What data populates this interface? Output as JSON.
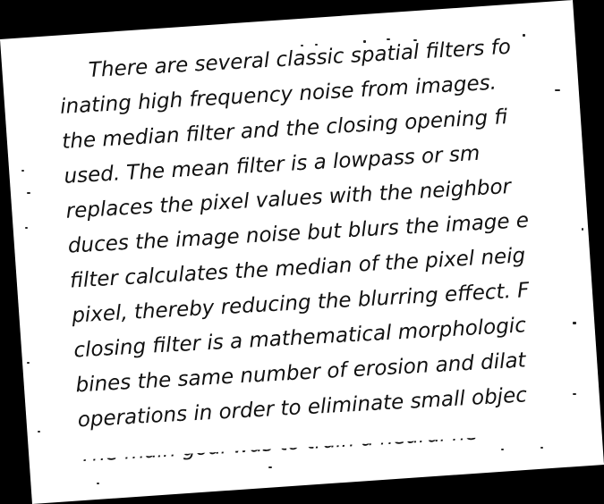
{
  "document": {
    "lines": [
      "There are several classic spatial filters fo",
      "inating high frequency noise from images.",
      "the median filter and the closing opening fi",
      "used. The mean filter is a lowpass or sm",
      "replaces the pixel values with the neighbor",
      "duces the image noise but blurs the image e",
      "filter calculates the median of the pixel neig",
      "pixel, thereby reducing the blurring effect. F",
      "closing filter is a mathematical morphologic",
      "bines the same number of erosion and dilat",
      "operations in order to eliminate small objec",
      "The main goal was to train a neural ne"
    ]
  }
}
